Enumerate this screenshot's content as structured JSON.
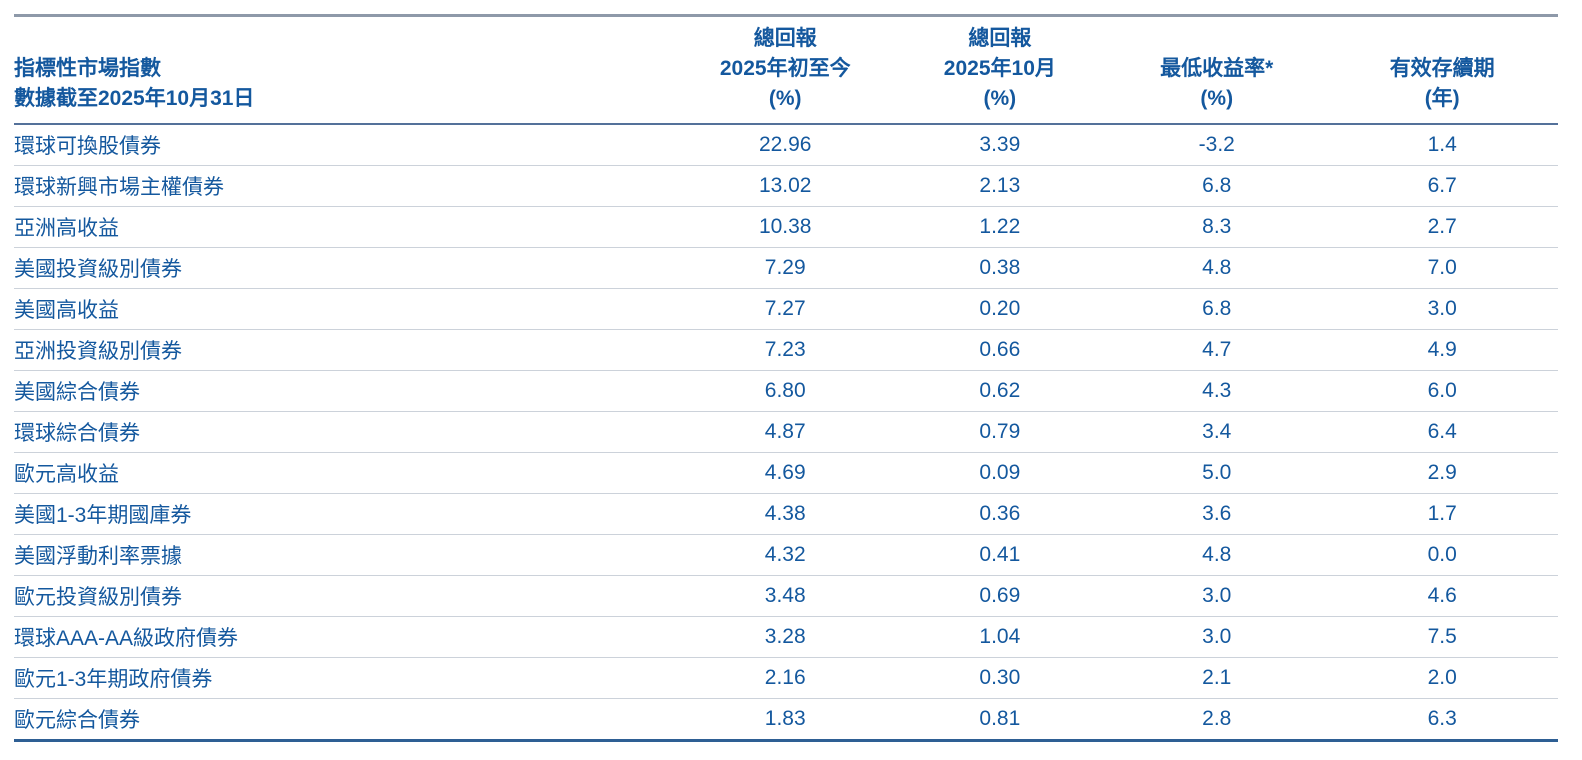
{
  "colors": {
    "text_blue": "#14589E",
    "top_border": "#8E99A9",
    "header_underline": "#54719A",
    "row_separator": "#CCD2DA",
    "bottom_border": "#2E5F94"
  },
  "table": {
    "header": {
      "index_column": {
        "line1": "",
        "line2": "指標性市場指數",
        "line3": "數據截至2025年10月31日"
      },
      "columns": [
        {
          "line1": "總回報",
          "line2": "2025年初至今",
          "line3": "(%)"
        },
        {
          "line1": "總回報",
          "line2": "2025年10月",
          "line3": "(%)"
        },
        {
          "line1": "",
          "line2": "最低收益率*",
          "line3": "(%)"
        },
        {
          "line1": "",
          "line2": "有效存續期",
          "line3": "(年)"
        }
      ]
    },
    "rows": [
      {
        "label": "環球可換股債券",
        "ytd": "22.96",
        "oct": "3.39",
        "ytw": "-3.2",
        "dur": "1.4"
      },
      {
        "label": "環球新興市場主權債券",
        "ytd": "13.02",
        "oct": "2.13",
        "ytw": "6.8",
        "dur": "6.7"
      },
      {
        "label": "亞洲高收益",
        "ytd": "10.38",
        "oct": "1.22",
        "ytw": "8.3",
        "dur": "2.7"
      },
      {
        "label": "美國投資級別債券",
        "ytd": "7.29",
        "oct": "0.38",
        "ytw": "4.8",
        "dur": "7.0"
      },
      {
        "label": "美國高收益",
        "ytd": "7.27",
        "oct": "0.20",
        "ytw": "6.8",
        "dur": "3.0"
      },
      {
        "label": "亞洲投資級別債券",
        "ytd": "7.23",
        "oct": "0.66",
        "ytw": "4.7",
        "dur": "4.9"
      },
      {
        "label": "美國綜合債券",
        "ytd": "6.80",
        "oct": "0.62",
        "ytw": "4.3",
        "dur": "6.0"
      },
      {
        "label": "環球綜合債券",
        "ytd": "4.87",
        "oct": "0.79",
        "ytw": "3.4",
        "dur": "6.4"
      },
      {
        "label": "歐元高收益",
        "ytd": "4.69",
        "oct": "0.09",
        "ytw": "5.0",
        "dur": "2.9"
      },
      {
        "label": "美國1-3年期國庫券",
        "ytd": "4.38",
        "oct": "0.36",
        "ytw": "3.6",
        "dur": "1.7"
      },
      {
        "label": "美國浮動利率票據",
        "ytd": "4.32",
        "oct": "0.41",
        "ytw": "4.8",
        "dur": "0.0"
      },
      {
        "label": "歐元投資級別債券",
        "ytd": "3.48",
        "oct": "0.69",
        "ytw": "3.0",
        "dur": "4.6"
      },
      {
        "label": "環球AAA-AA級政府債券",
        "ytd": "3.28",
        "oct": "1.04",
        "ytw": "3.0",
        "dur": "7.5"
      },
      {
        "label": "歐元1-3年期政府債券",
        "ytd": "2.16",
        "oct": "0.30",
        "ytw": "2.1",
        "dur": "2.0"
      },
      {
        "label": "歐元綜合債券",
        "ytd": "1.83",
        "oct": "0.81",
        "ytw": "2.8",
        "dur": "6.3"
      }
    ]
  }
}
